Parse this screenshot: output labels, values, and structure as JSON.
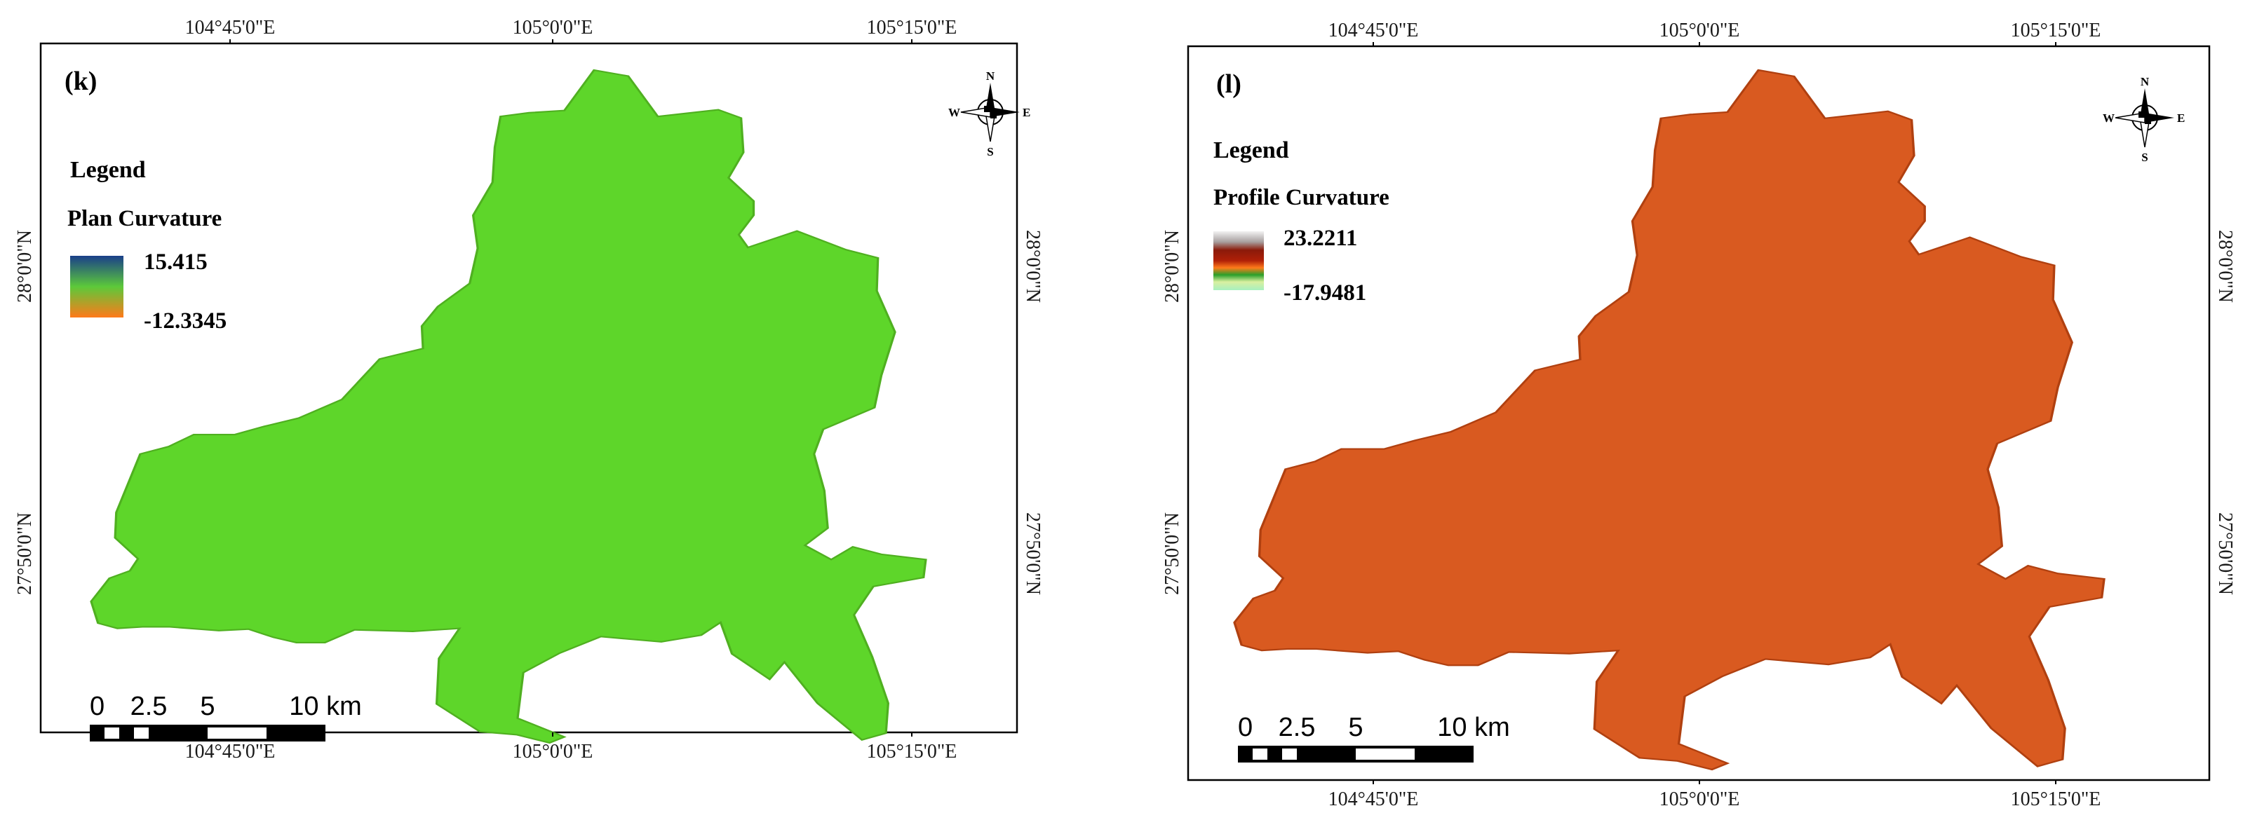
{
  "panels": [
    {
      "id": "k",
      "label": "(k)",
      "legend_title": "Legend",
      "legend_subtitle": "Plan  Curvature",
      "legend_max": "15.415",
      "legend_min": "-12.3345",
      "lon_ticks": [
        "104°45'0\"E",
        "105°0'0\"E",
        "105°15'0\"E"
      ],
      "lat_ticks": [
        "28°0'0\"N",
        "27°50'0\"N"
      ],
      "scale_labels": [
        "0",
        "2.5",
        "5",
        "10 km"
      ],
      "colors": {
        "ramp_top": "#1a3f8a",
        "ramp_mid": "#5cc93a",
        "ramp_bottom": "#ff7a1a",
        "map_fill": "#5ed62a",
        "map_texture": "#c9a030"
      }
    },
    {
      "id": "l",
      "label": "(l)",
      "legend_title": "Legend",
      "legend_subtitle": "Profile  Curvature",
      "legend_max": "23.2211",
      "legend_min": "-17.9481",
      "lon_ticks": [
        "104°45'0\"E",
        "105°0'0\"E",
        "105°15'0\"E"
      ],
      "lat_ticks": [
        "28°0'0\"N",
        "27°50'0\"N"
      ],
      "scale_labels": [
        "0",
        "2.5",
        "5",
        "10 km"
      ],
      "colors": {
        "ramp_top": "#f2f2f2",
        "ramp_mid1": "#8b1a0a",
        "ramp_mid2": "#ff7a1a",
        "ramp_mid3": "#2aa02a",
        "ramp_bottom": "#a8f0c0",
        "map_fill": "#d95a20",
        "map_texture": "#6b2a10"
      }
    }
  ],
  "compass": {
    "n": "N",
    "s": "S",
    "e": "E",
    "w": "W"
  }
}
